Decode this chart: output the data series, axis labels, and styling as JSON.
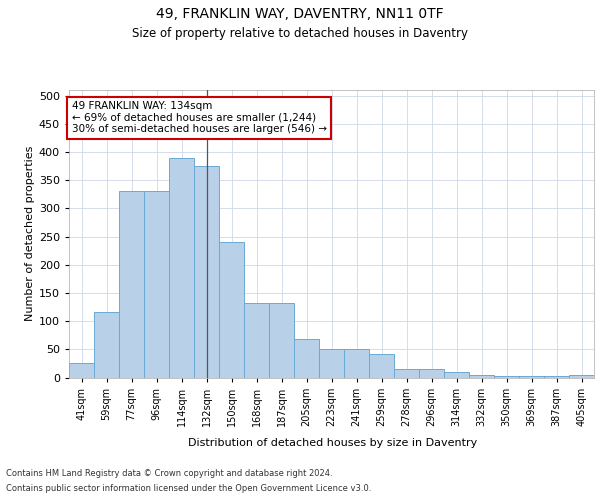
{
  "title1": "49, FRANKLIN WAY, DAVENTRY, NN11 0TF",
  "title2": "Size of property relative to detached houses in Daventry",
  "xlabel": "Distribution of detached houses by size in Daventry",
  "ylabel": "Number of detached properties",
  "categories": [
    "41sqm",
    "59sqm",
    "77sqm",
    "96sqm",
    "114sqm",
    "132sqm",
    "150sqm",
    "168sqm",
    "187sqm",
    "205sqm",
    "223sqm",
    "241sqm",
    "259sqm",
    "278sqm",
    "296sqm",
    "314sqm",
    "332sqm",
    "350sqm",
    "369sqm",
    "387sqm",
    "405sqm"
  ],
  "values": [
    25,
    117,
    330,
    330,
    390,
    375,
    240,
    133,
    133,
    68,
    50,
    50,
    42,
    15,
    15,
    10,
    5,
    3,
    2,
    2,
    5
  ],
  "bar_color": "#b8d0e8",
  "bar_edge_color": "#6aaad4",
  "marker_index": 5,
  "annotation_text": "49 FRANKLIN WAY: 134sqm\n← 69% of detached houses are smaller (1,244)\n30% of semi-detached houses are larger (546) →",
  "annotation_box_color": "#ffffff",
  "annotation_box_edge": "#cc0000",
  "footer1": "Contains HM Land Registry data © Crown copyright and database right 2024.",
  "footer2": "Contains public sector information licensed under the Open Government Licence v3.0.",
  "ylim": [
    0,
    510
  ],
  "yticks": [
    0,
    50,
    100,
    150,
    200,
    250,
    300,
    350,
    400,
    450,
    500
  ],
  "bg_color": "#ffffff",
  "grid_color": "#d0d8e8"
}
